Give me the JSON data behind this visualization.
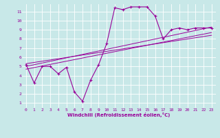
{
  "xlabel": "Windchill (Refroidissement éolien,°C)",
  "bg_color": "#c8e8e8",
  "line_color": "#990099",
  "grid_color": "#ffffff",
  "xlim": [
    -0.5,
    23.5
  ],
  "ylim": [
    0.5,
    11.8
  ],
  "xticks": [
    0,
    1,
    2,
    3,
    4,
    5,
    6,
    7,
    8,
    9,
    10,
    11,
    12,
    13,
    14,
    15,
    16,
    17,
    18,
    19,
    20,
    21,
    22,
    23
  ],
  "yticks": [
    1,
    2,
    3,
    4,
    5,
    6,
    7,
    8,
    9,
    10,
    11
  ],
  "main_x": [
    0,
    1,
    2,
    3,
    4,
    5,
    6,
    7,
    8,
    9,
    10,
    11,
    12,
    13,
    14,
    15,
    16,
    17,
    18,
    19,
    20,
    21,
    22,
    23
  ],
  "main_y": [
    5.2,
    3.2,
    5.0,
    5.0,
    4.2,
    4.9,
    2.2,
    1.2,
    3.5,
    5.2,
    7.5,
    11.4,
    11.2,
    11.5,
    11.5,
    11.5,
    10.5,
    8.0,
    9.0,
    9.2,
    9.0,
    9.2,
    9.2,
    9.2
  ],
  "line1_x": [
    0,
    23
  ],
  "line1_y": [
    5.0,
    9.3
  ],
  "line2_x": [
    0,
    23
  ],
  "line2_y": [
    4.7,
    8.7
  ],
  "line3_x": [
    0,
    23
  ],
  "line3_y": [
    5.3,
    8.4
  ]
}
